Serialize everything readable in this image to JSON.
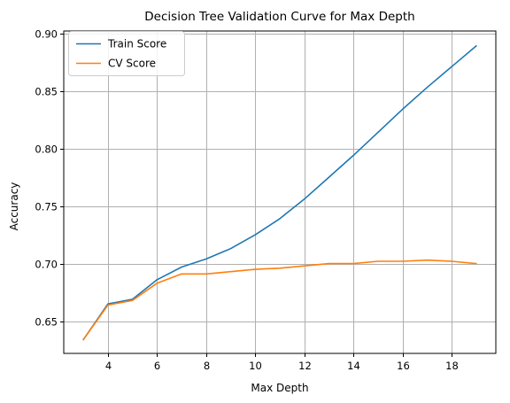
{
  "chart_data": {
    "type": "line",
    "title": "Decision Tree Validation Curve for Max Depth",
    "xlabel": "Max Depth",
    "ylabel": "Accuracy",
    "x": [
      3,
      4,
      5,
      6,
      7,
      8,
      9,
      10,
      11,
      12,
      13,
      14,
      15,
      16,
      17,
      18,
      19
    ],
    "xlim": [
      2.2,
      19.8
    ],
    "ylim": [
      0.622,
      0.902
    ],
    "xticks": [
      4,
      6,
      8,
      10,
      12,
      14,
      16,
      18
    ],
    "yticks": [
      0.65,
      0.7,
      0.75,
      0.8,
      0.85,
      0.9
    ],
    "ytick_labels": [
      "0.65",
      "0.70",
      "0.75",
      "0.80",
      "0.85",
      "0.90"
    ],
    "grid": true,
    "legend_position": "top-left",
    "series": [
      {
        "name": "Train Score",
        "color": "#1f77b4",
        "values": [
          0.634,
          0.665,
          0.669,
          0.686,
          0.697,
          0.704,
          0.713,
          0.725,
          0.739,
          0.756,
          0.775,
          0.794,
          0.814,
          0.834,
          0.853,
          0.871,
          0.889
        ]
      },
      {
        "name": "CV Score",
        "color": "#ff7f0e",
        "values": [
          0.634,
          0.664,
          0.668,
          0.683,
          0.691,
          0.691,
          0.693,
          0.695,
          0.696,
          0.698,
          0.7,
          0.7,
          0.702,
          0.702,
          0.703,
          0.702,
          0.7
        ]
      }
    ]
  }
}
